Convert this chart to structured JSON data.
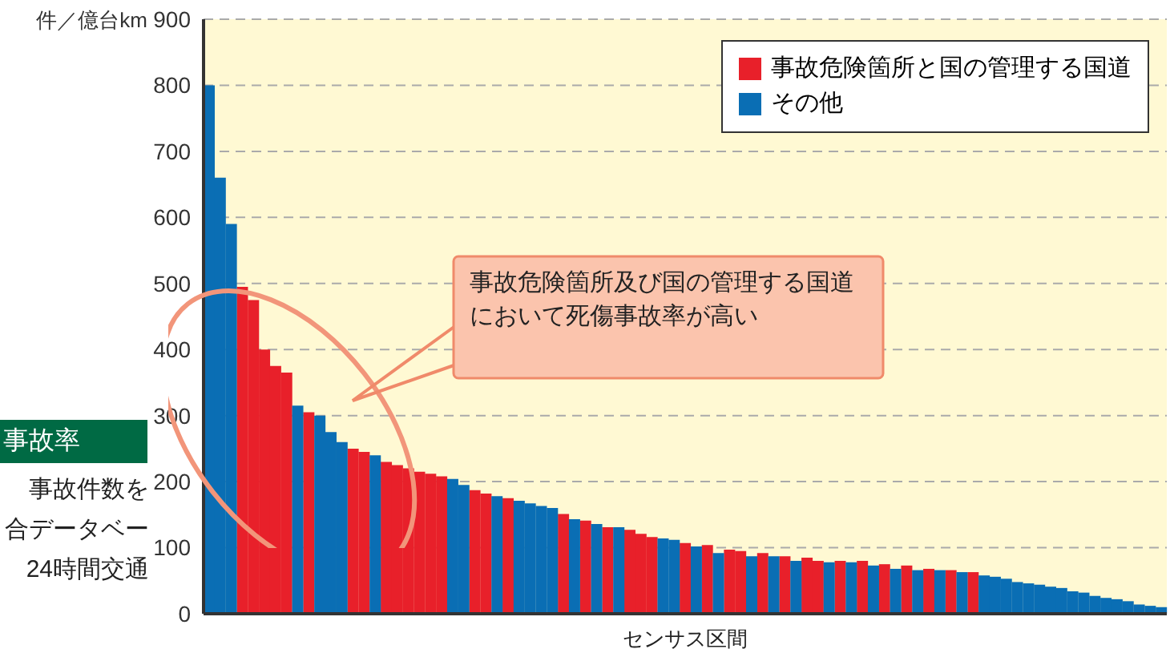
{
  "chart_data": {
    "type": "bar",
    "stacked": true,
    "ylabel": "件／億台km",
    "xlabel": "センサス区間",
    "ylim": [
      0,
      900
    ],
    "yticks": [
      0,
      100,
      200,
      300,
      400,
      500,
      600,
      700,
      800,
      900
    ],
    "grid": "y",
    "legend": "top right",
    "tick_labels": "y",
    "categories": [
      null,
      null,
      null,
      null,
      null,
      null,
      null,
      null,
      null,
      null,
      null,
      null,
      null,
      null,
      null,
      null,
      null,
      null,
      null,
      null,
      null,
      null,
      null,
      null,
      null,
      null,
      null,
      null,
      null,
      null,
      null,
      null,
      null,
      null,
      null,
      null,
      null,
      null,
      null,
      null,
      null,
      null,
      null,
      null,
      null,
      null,
      null,
      null,
      null,
      null,
      null,
      null,
      null,
      null,
      null,
      null,
      null,
      null,
      null,
      null,
      null,
      null,
      null,
      null,
      null,
      null,
      null,
      null,
      null,
      null,
      null,
      null,
      null,
      null,
      null,
      null,
      null,
      null,
      null,
      null,
      null,
      null,
      null,
      null,
      null,
      null,
      null
    ],
    "series": [
      {
        "name": "事故危険箇所と国の管理する国道",
        "color": "#e8202a",
        "values": [
          null,
          null,
          null,
          495,
          475,
          400,
          375,
          365,
          null,
          305,
          null,
          null,
          null,
          250,
          245,
          null,
          230,
          225,
          220,
          215,
          212,
          208,
          null,
          null,
          187,
          182,
          null,
          175,
          null,
          null,
          null,
          null,
          151,
          null,
          141,
          null,
          131,
          null,
          127,
          121,
          116,
          null,
          null,
          107,
          null,
          104,
          null,
          97,
          95,
          null,
          92,
          null,
          87,
          null,
          85,
          80,
          null,
          80,
          null,
          80,
          null,
          75,
          null,
          73,
          null,
          68,
          null,
          66,
          null,
          63,
          null,
          null,
          null,
          null,
          null,
          null,
          null,
          null,
          null,
          null,
          null,
          null,
          null,
          null,
          null,
          null,
          null
        ]
      },
      {
        "name": "その他",
        "color": "#0a6eb4",
        "values": [
          800,
          660,
          590,
          null,
          null,
          null,
          null,
          null,
          315,
          null,
          300,
          275,
          260,
          null,
          null,
          240,
          null,
          null,
          null,
          null,
          null,
          null,
          204,
          195,
          null,
          null,
          178,
          null,
          171,
          167,
          163,
          160,
          null,
          143,
          null,
          136,
          null,
          131,
          null,
          null,
          null,
          114,
          112,
          null,
          102,
          null,
          92,
          null,
          null,
          87,
          null,
          87,
          null,
          80,
          null,
          null,
          78,
          null,
          78,
          null,
          73,
          null,
          68,
          null,
          66,
          null,
          66,
          null,
          63,
          null,
          58,
          56,
          53,
          48,
          46,
          44,
          41,
          39,
          34,
          32,
          27,
          24,
          22,
          19,
          14,
          12,
          10
        ]
      }
    ],
    "annotations": [
      "事故危険箇所及び国の管理する国道において死傷事故率が高い",
      "事故率",
      "事故件数を",
      "合データベー",
      "24時間交通"
    ]
  }
}
